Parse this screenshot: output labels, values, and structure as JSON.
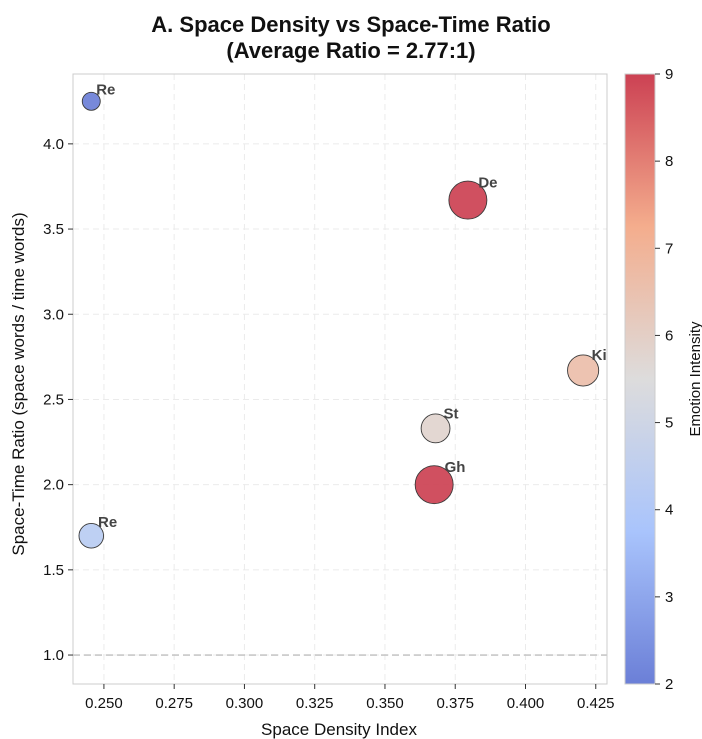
{
  "chart_data": {
    "type": "scatter",
    "title_line1": "A. Space Density vs Space-Time Ratio",
    "title_line2": "(Average Ratio = 2.77:1)",
    "xlabel": "Space Density Index",
    "ylabel": "Space-Time Ratio (space words / time words)",
    "xlim": [
      0.239,
      0.429
    ],
    "ylim": [
      0.83,
      4.41
    ],
    "xticks": [
      "0.250",
      "0.275",
      "0.300",
      "0.325",
      "0.350",
      "0.375",
      "0.400",
      "0.425"
    ],
    "yticks": [
      "1.0",
      "1.5",
      "2.0",
      "2.5",
      "3.0",
      "3.5",
      "4.0"
    ],
    "grid": true,
    "reference_line": {
      "y": 1.0,
      "style": "dashed"
    },
    "colorbar": {
      "label": "Emotion Intensity",
      "range": [
        2,
        9
      ],
      "ticks": [
        "2",
        "3",
        "4",
        "5",
        "6",
        "7",
        "8",
        "9"
      ],
      "colormap": "coolwarm"
    },
    "points": [
      {
        "label": "Re",
        "x": 0.2455,
        "y": 4.25,
        "emotion": 2,
        "size": 2
      },
      {
        "label": "De",
        "x": 0.3795,
        "y": 3.67,
        "emotion": 9,
        "size": 9
      },
      {
        "label": "Ki",
        "x": 0.4205,
        "y": 2.67,
        "emotion": 6.6,
        "size": 6.6
      },
      {
        "label": "St",
        "x": 0.368,
        "y": 2.33,
        "emotion": 5.8,
        "size": 5.8
      },
      {
        "label": "Gh",
        "x": 0.3675,
        "y": 2.0,
        "emotion": 9,
        "size": 9
      },
      {
        "label": "Re",
        "x": 0.2455,
        "y": 1.7,
        "emotion": 4.3,
        "size": 4.3
      }
    ]
  }
}
